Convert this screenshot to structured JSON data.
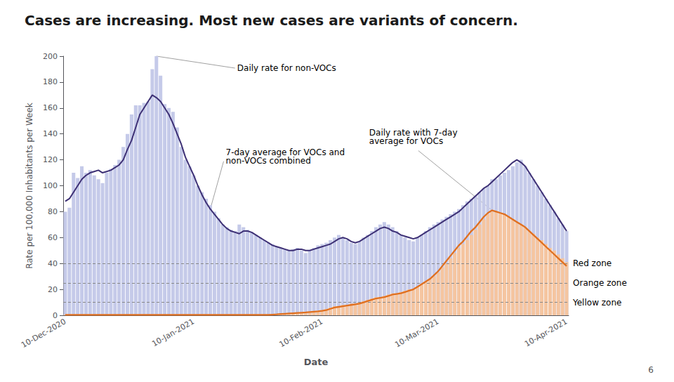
{
  "chart_data": {
    "type": "bar",
    "title": "Cases are increasing. Most new cases are variants of concern.",
    "xlabel": "Date",
    "ylabel": "Rate per 100,000 Inhabitants per Week",
    "ylim": [
      0,
      200
    ],
    "yticks": [
      0,
      20,
      40,
      60,
      80,
      100,
      120,
      140,
      160,
      180,
      200
    ],
    "grid": false,
    "categories": [
      "10-Dec-2020",
      null,
      null,
      null,
      null,
      null,
      null,
      null,
      null,
      null,
      null,
      null,
      null,
      null,
      null,
      null,
      null,
      null,
      null,
      null,
      null,
      null,
      null,
      null,
      null,
      null,
      null,
      null,
      null,
      null,
      null,
      "10-Jan-2021",
      null,
      null,
      null,
      null,
      null,
      null,
      null,
      null,
      null,
      null,
      null,
      null,
      null,
      null,
      null,
      null,
      null,
      null,
      null,
      null,
      null,
      null,
      null,
      null,
      null,
      null,
      null,
      null,
      null,
      null,
      "10-Feb-2021",
      null,
      null,
      null,
      null,
      null,
      null,
      null,
      null,
      null,
      null,
      null,
      null,
      null,
      null,
      null,
      null,
      null,
      null,
      null,
      null,
      null,
      null,
      null,
      null,
      null,
      null,
      null,
      "10-Mar-2021",
      null,
      null,
      null,
      null,
      null,
      null,
      null,
      null,
      null,
      null,
      null,
      null,
      null,
      null,
      null,
      null,
      null,
      null,
      null,
      null,
      null,
      null,
      null,
      null,
      null,
      null,
      null,
      null,
      null,
      null,
      "10-Apr-2021"
    ],
    "series": [
      {
        "type": "bar",
        "color": "#c5cae9",
        "values": [
          80,
          83,
          110,
          106,
          115,
          110,
          112,
          108,
          105,
          102,
          110,
          113,
          116,
          120,
          130,
          140,
          155,
          162,
          162,
          164,
          165,
          190,
          200,
          185,
          163,
          160,
          157,
          145,
          130,
          120,
          115,
          108,
          100,
          95,
          90,
          85,
          80,
          75,
          70,
          68,
          66,
          65,
          70,
          68,
          66,
          64,
          62,
          60,
          58,
          56,
          55,
          53,
          52,
          51,
          50,
          51,
          52,
          50,
          48,
          50,
          52,
          54,
          55,
          56,
          58,
          60,
          62,
          60,
          58,
          56,
          55,
          57,
          60,
          62,
          65,
          68,
          70,
          72,
          70,
          68,
          65,
          62,
          60,
          58,
          57,
          60,
          62,
          65,
          68,
          70,
          72,
          74,
          76,
          78,
          80,
          82,
          85,
          88,
          90,
          92,
          95,
          98,
          100,
          105,
          105,
          108,
          110,
          112,
          115,
          118,
          120,
          115,
          110,
          105,
          100,
          95,
          90,
          85,
          80,
          75,
          70,
          65
        ]
      },
      {
        "type": "bar",
        "color": "#f5c5a0",
        "values": [
          0.5,
          0.5,
          0.5,
          0.5,
          0.5,
          0.5,
          0.5,
          0.5,
          0.5,
          0.5,
          0.5,
          0.5,
          0.5,
          0.5,
          0.5,
          0.5,
          0.5,
          0.5,
          0.5,
          0.5,
          0.5,
          0.5,
          0.5,
          0.5,
          0.5,
          0.5,
          0.5,
          0.5,
          0.5,
          0.5,
          0.5,
          0.5,
          0.5,
          0.5,
          0.5,
          0.5,
          0.5,
          0.5,
          0.5,
          0.5,
          0.5,
          0.5,
          0.5,
          0.5,
          0.5,
          0.5,
          0.5,
          0.5,
          0.5,
          0.5,
          0.5,
          0.5,
          1,
          1,
          1,
          1.5,
          1.5,
          2,
          2,
          2.5,
          3,
          3.5,
          4,
          5,
          6,
          7,
          7,
          8,
          8,
          9,
          9,
          10,
          11,
          12,
          13,
          14,
          14,
          15,
          16,
          17,
          17,
          18,
          19,
          20,
          20,
          22,
          24,
          26,
          28,
          30,
          33,
          37,
          40,
          44,
          48,
          52,
          55,
          58,
          62,
          66,
          70,
          74,
          78,
          80,
          80,
          79,
          78,
          76,
          74,
          72,
          70,
          68,
          65,
          63,
          60,
          58,
          55,
          52,
          50,
          47,
          44,
          41
        ]
      },
      {
        "type": "line",
        "color": "#3d3075",
        "values": [
          88,
          90,
          95,
          100,
          105,
          108,
          110,
          111,
          112,
          110,
          111,
          112,
          114,
          116,
          120,
          128,
          135,
          145,
          155,
          160,
          165,
          170,
          168,
          165,
          160,
          155,
          148,
          140,
          132,
          122,
          115,
          108,
          100,
          93,
          87,
          82,
          78,
          74,
          70,
          67,
          65,
          64,
          63,
          65,
          65,
          64,
          62,
          60,
          58,
          56,
          54,
          53,
          52,
          51,
          50,
          50,
          51,
          51,
          50,
          50,
          51,
          52,
          53,
          54,
          55,
          57,
          59,
          60,
          59,
          57,
          56,
          57,
          59,
          61,
          63,
          65,
          67,
          68,
          67,
          65,
          64,
          62,
          61,
          60,
          59,
          60,
          62,
          64,
          66,
          68,
          70,
          72,
          74,
          76,
          78,
          80,
          83,
          86,
          89,
          92,
          95,
          98,
          100,
          103,
          106,
          109,
          112,
          115,
          118,
          120,
          118,
          115,
          110,
          105,
          100,
          95,
          90,
          85,
          80,
          75,
          70,
          65
        ]
      },
      {
        "type": "line",
        "color": "#e07020",
        "values": [
          0.3,
          0.3,
          0.3,
          0.3,
          0.3,
          0.3,
          0.3,
          0.3,
          0.3,
          0.3,
          0.3,
          0.3,
          0.3,
          0.3,
          0.3,
          0.3,
          0.3,
          0.3,
          0.3,
          0.3,
          0.3,
          0.3,
          0.3,
          0.3,
          0.3,
          0.3,
          0.3,
          0.3,
          0.3,
          0.3,
          0.3,
          0.3,
          0.3,
          0.3,
          0.3,
          0.3,
          0.3,
          0.3,
          0.3,
          0.3,
          0.3,
          0.3,
          0.3,
          0.3,
          0.3,
          0.3,
          0.3,
          0.3,
          0.3,
          0.3,
          0.5,
          0.7,
          1.0,
          1.2,
          1.4,
          1.6,
          1.8,
          2.0,
          2.2,
          2.5,
          2.8,
          3.1,
          3.5,
          4.0,
          5.0,
          6.0,
          6.5,
          7.0,
          7.5,
          8.0,
          8.5,
          9.0,
          10,
          11,
          12,
          13,
          13.5,
          14,
          15,
          16,
          16.5,
          17,
          18,
          19,
          20,
          22,
          24,
          26,
          28,
          31,
          34,
          38,
          42,
          46,
          50,
          54,
          57,
          61,
          65,
          68,
          72,
          76,
          79,
          81,
          80,
          79,
          78,
          76,
          74,
          72,
          70,
          68,
          65,
          62,
          59,
          56,
          53,
          50,
          47,
          44,
          41,
          38
        ]
      }
    ],
    "reference_lines": [
      {
        "value": 10,
        "label": "Yellow zone"
      },
      {
        "value": 25,
        "label": "Orange zone"
      },
      {
        "value": 40,
        "label": "Red zone"
      }
    ],
    "annotations": [
      "Daily rate for non-VOCs",
      "7-day average for VOCs and\nnon-VOCs combined",
      "Daily rate with 7-day\naverage for VOCs"
    ],
    "page_number": "6"
  }
}
